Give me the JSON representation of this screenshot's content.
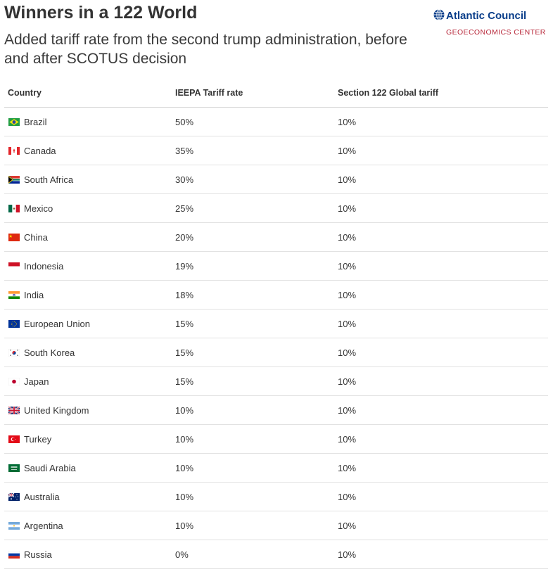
{
  "title": "Winners in a 122 World",
  "subtitle": "Added tariff rate from the second trump administration, before and after SCOTUS decision",
  "logo": {
    "name": "Atlantic Council",
    "center": "GEOECONOMICS CENTER",
    "brand_color": "#0a3e8a",
    "accent_color": "#b8283a"
  },
  "chart_data": {
    "type": "table",
    "columns": [
      "Country",
      "IEEPA Tariff rate",
      "Section 122 Global tariff"
    ],
    "rows": [
      {
        "country": "Brazil",
        "flag": "brazil-flag-icon",
        "ieepa": "50%",
        "section122": "10%"
      },
      {
        "country": "Canada",
        "flag": "canada-flag-icon",
        "ieepa": "35%",
        "section122": "10%"
      },
      {
        "country": "South Africa",
        "flag": "south-africa-flag-icon",
        "ieepa": "30%",
        "section122": "10%"
      },
      {
        "country": "Mexico",
        "flag": "mexico-flag-icon",
        "ieepa": "25%",
        "section122": "10%"
      },
      {
        "country": "China",
        "flag": "china-flag-icon",
        "ieepa": "20%",
        "section122": "10%"
      },
      {
        "country": "Indonesia",
        "flag": "indonesia-flag-icon",
        "ieepa": "19%",
        "section122": "10%"
      },
      {
        "country": "India",
        "flag": "india-flag-icon",
        "ieepa": "18%",
        "section122": "10%"
      },
      {
        "country": "European Union",
        "flag": "european-union-flag-icon",
        "ieepa": "15%",
        "section122": "10%"
      },
      {
        "country": "South Korea",
        "flag": "south-korea-flag-icon",
        "ieepa": "15%",
        "section122": "10%"
      },
      {
        "country": "Japan",
        "flag": "japan-flag-icon",
        "ieepa": "15%",
        "section122": "10%"
      },
      {
        "country": "United Kingdom",
        "flag": "united-kingdom-flag-icon",
        "ieepa": "10%",
        "section122": "10%"
      },
      {
        "country": "Turkey",
        "flag": "turkey-flag-icon",
        "ieepa": "10%",
        "section122": "10%"
      },
      {
        "country": "Saudi Arabia",
        "flag": "saudi-arabia-flag-icon",
        "ieepa": "10%",
        "section122": "10%"
      },
      {
        "country": "Australia",
        "flag": "australia-flag-icon",
        "ieepa": "10%",
        "section122": "10%"
      },
      {
        "country": "Argentina",
        "flag": "argentina-flag-icon",
        "ieepa": "10%",
        "section122": "10%"
      },
      {
        "country": "Russia",
        "flag": "russia-flag-icon",
        "ieepa": "0%",
        "section122": "10%"
      }
    ]
  }
}
